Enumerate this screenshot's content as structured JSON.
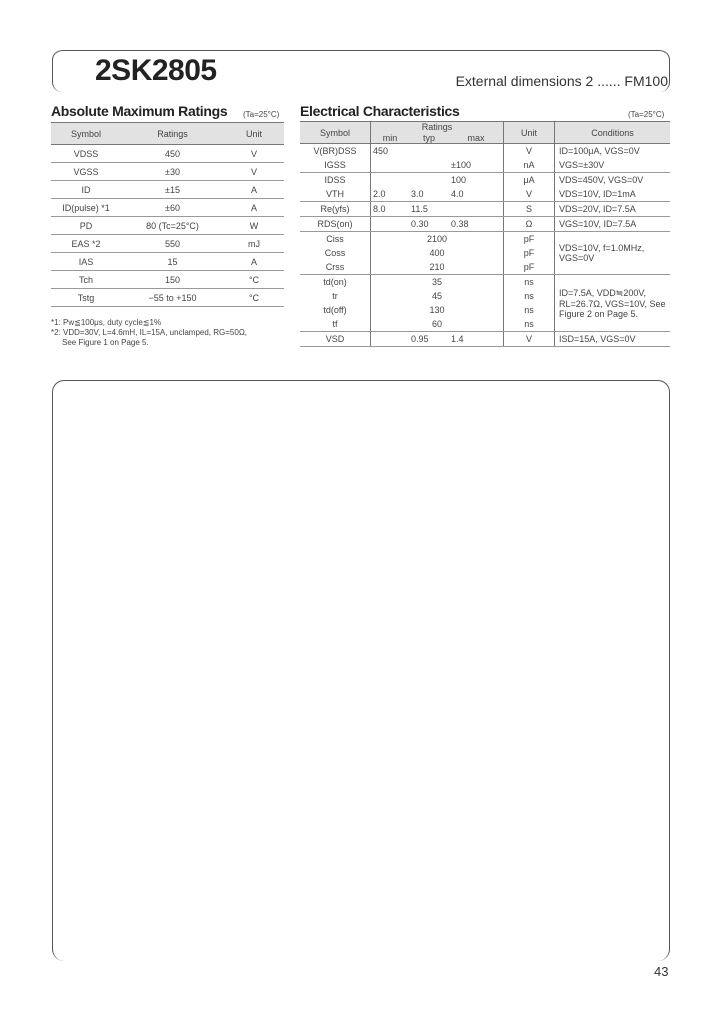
{
  "header": {
    "part": "2SK2805",
    "external": "External dimensions 2 ...... FM100"
  },
  "amr": {
    "title": "Absolute Maximum Ratings",
    "cond": "(Ta=25°C)",
    "headers": [
      "Symbol",
      "Ratings",
      "Unit"
    ],
    "rows": [
      [
        "VDSS",
        "450",
        "V"
      ],
      [
        "VGSS",
        "±30",
        "V"
      ],
      [
        "ID",
        "±15",
        "A"
      ],
      [
        "ID(pulse) *1",
        "±60",
        "A"
      ],
      [
        "PD",
        "80 (Tc=25°C)",
        "W"
      ],
      [
        "EAS *2",
        "550",
        "mJ"
      ],
      [
        "IAS",
        "15",
        "A"
      ],
      [
        "Tch",
        "150",
        "°C"
      ],
      [
        "Tstg",
        "−55 to +150",
        "°C"
      ]
    ],
    "notes": [
      "*1: Pw≦100μs, duty cycle≦1%",
      "*2: VDD=30V, L=4.6mH, IL=15A, unclamped, RG=50Ω,",
      "See Figure 1 on Page 5."
    ]
  },
  "ec": {
    "title": "Electrical Characteristics",
    "cond": "(Ta=25°C)",
    "headers": {
      "symbol": "Symbol",
      "ratings": "Ratings",
      "min": "min",
      "typ": "typ",
      "max": "max",
      "unit": "Unit",
      "conditions": "Conditions"
    },
    "rows": [
      {
        "sym": "V(BR)DSS",
        "min": "450",
        "typ": "",
        "max": "",
        "unit": "V",
        "cond": "ID=100μA, VGS=0V"
      },
      {
        "sym": "IGSS",
        "min": "",
        "typ": "",
        "max": "±100",
        "unit": "nA",
        "cond": "VGS=±30V"
      },
      {
        "sym": "IDSS",
        "min": "",
        "typ": "",
        "max": "100",
        "unit": "μA",
        "cond": "VDS=450V, VGS=0V"
      },
      {
        "sym": "VTH",
        "min": "2.0",
        "typ": "3.0",
        "max": "4.0",
        "unit": "V",
        "cond": "VDS=10V, ID=1mA"
      },
      {
        "sym": "Re(yfs)",
        "min": "8.0",
        "typ": "11.5",
        "max": "",
        "unit": "S",
        "cond": "VDS=20V, ID=7.5A"
      },
      {
        "sym": "RDS(on)",
        "min": "",
        "typ": "0.30",
        "max": "0.38",
        "unit": "Ω",
        "cond": "VGS=10V, ID=7.5A"
      },
      {
        "sym": "Ciss",
        "typ": "2100",
        "unit": "pF"
      },
      {
        "sym": "Coss",
        "typ": "400",
        "unit": "pF"
      },
      {
        "sym": "Crss",
        "typ": "210",
        "unit": "pF"
      },
      {
        "sym": "td(on)",
        "typ": "35",
        "unit": "ns"
      },
      {
        "sym": "tr",
        "typ": "45",
        "unit": "ns"
      },
      {
        "sym": "td(off)",
        "typ": "130",
        "unit": "ns"
      },
      {
        "sym": "tf",
        "typ": "60",
        "unit": "ns"
      },
      {
        "sym": "VSD",
        "min": "",
        "typ": "0.95",
        "max": "1.4",
        "unit": "V",
        "cond": "ISD=15A, VGS=0V"
      }
    ],
    "cap_cond": "VDS=10V, f=1.0MHz, VGS=0V",
    "sw_cond": "ID=7.5A, VDD≒200V, RL=26.7Ω, VGS=10V, See Figure 2 on Page 5."
  },
  "page_number": "43"
}
